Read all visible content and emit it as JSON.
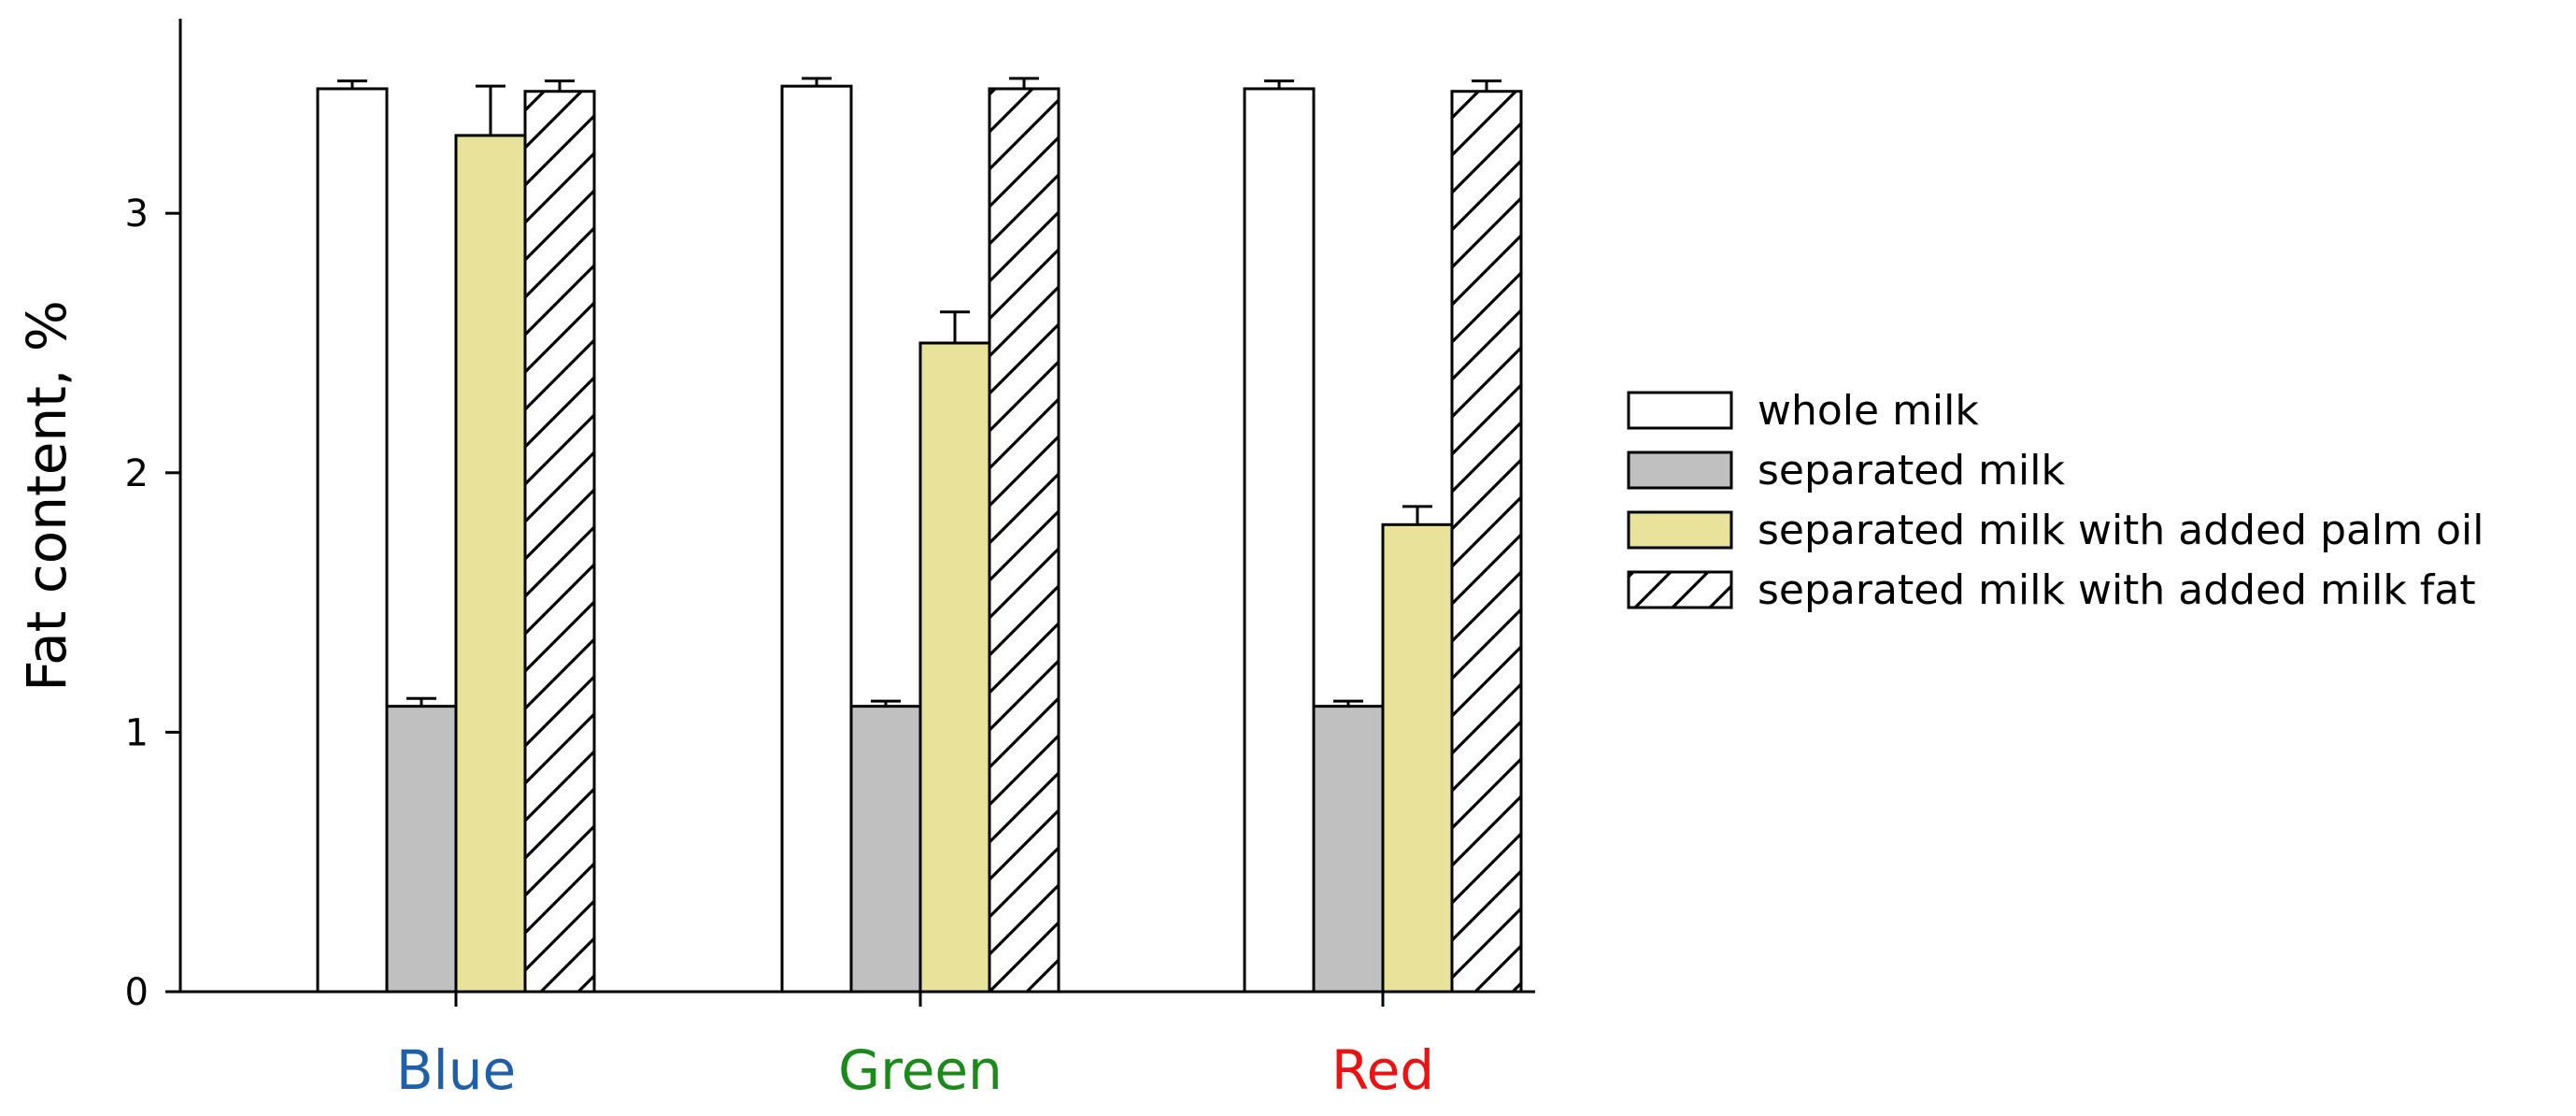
{
  "chart_data": {
    "type": "bar",
    "title": "",
    "xlabel": "",
    "ylabel": "Fat content, %",
    "ylim": [
      0,
      3.75
    ],
    "yticks": [
      0,
      1,
      2,
      3
    ],
    "categories": [
      "Blue",
      "Green",
      "Red"
    ],
    "category_colors": [
      "#1f5fa8",
      "#1a8a1a",
      "#ee1111"
    ],
    "series": [
      {
        "name": "whole milk",
        "values": [
          3.48,
          3.49,
          3.48
        ],
        "errors": [
          0.03,
          0.03,
          0.03
        ],
        "fill": "#ffffff",
        "pattern": "none"
      },
      {
        "name": "separated milk",
        "values": [
          1.1,
          1.1,
          1.1
        ],
        "errors": [
          0.03,
          0.02,
          0.02
        ],
        "fill": "#c0c0c0",
        "pattern": "none"
      },
      {
        "name": "separated milk with added palm oil",
        "values": [
          3.3,
          2.5,
          1.8
        ],
        "errors": [
          0.19,
          0.12,
          0.07
        ],
        "fill": "#e8e29a",
        "pattern": "none"
      },
      {
        "name": "separated milk with added milk fat",
        "values": [
          3.47,
          3.48,
          3.47
        ],
        "errors": [
          0.04,
          0.04,
          0.04
        ],
        "fill": "#ffffff",
        "pattern": "diagonal-hatch"
      }
    ],
    "grid": false,
    "legend_position": "right"
  }
}
